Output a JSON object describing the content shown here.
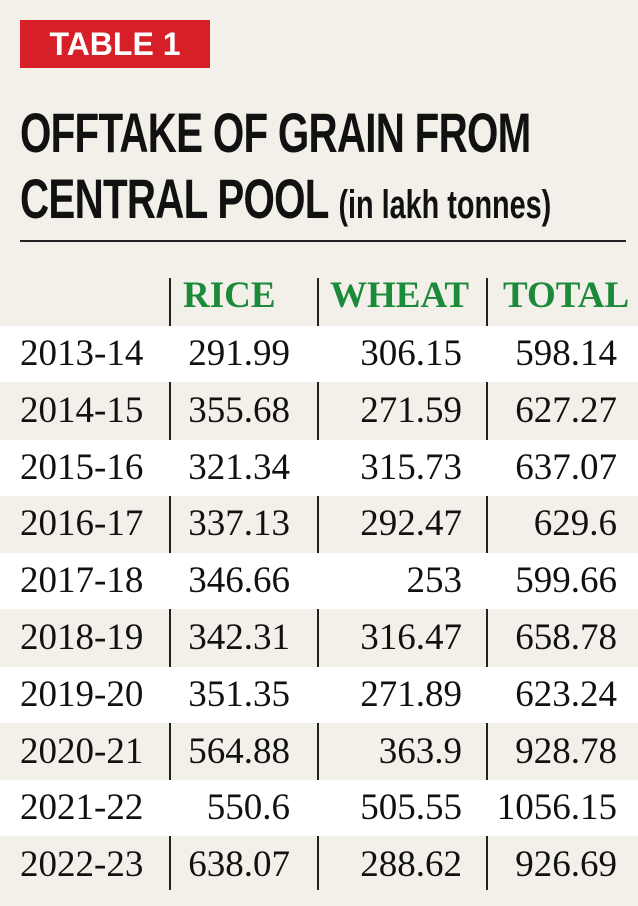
{
  "label": "TABLE 1",
  "title": [
    "OFFTAKE OF GRAIN FROM",
    "CENTRAL POOL"
  ],
  "unit": "(in lakh tonnes)",
  "table": {
    "columns": [
      "RICE",
      "WHEAT",
      "TOTAL"
    ],
    "rows": [
      [
        "2013-14",
        291.99,
        306.15,
        598.14
      ],
      [
        "2014-15",
        355.68,
        271.59,
        627.27
      ],
      [
        "2015-16",
        321.34,
        315.73,
        637.07
      ],
      [
        "2016-17",
        337.13,
        292.47,
        629.6
      ],
      [
        "2017-18",
        346.66,
        253,
        599.66
      ],
      [
        "2018-19",
        342.31,
        316.47,
        658.78
      ],
      [
        "2019-20",
        351.35,
        271.89,
        623.24
      ],
      [
        "2020-21",
        564.88,
        363.9,
        928.78
      ],
      [
        "2021-22",
        550.6,
        505.55,
        1056.15
      ],
      [
        "2022-23",
        638.07,
        288.62,
        926.69
      ]
    ]
  }
}
